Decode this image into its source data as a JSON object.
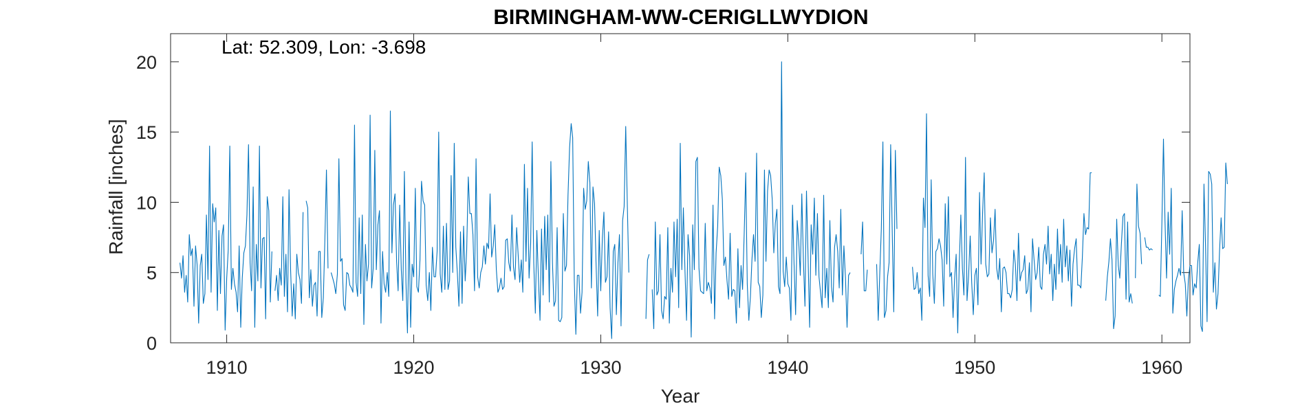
{
  "chart_data": {
    "type": "line",
    "title": "BIRMINGHAM-WW-CERIGLLWYDION",
    "annotation": "Lat: 52.309, Lon: -3.698",
    "xlabel": "Year",
    "ylabel": "Rainfall [inches]",
    "xlim": [
      1907,
      1961.5
    ],
    "ylim": [
      0,
      22
    ],
    "xticks": [
      1910,
      1920,
      1930,
      1940,
      1950,
      1960
    ],
    "yticks": [
      0,
      5,
      10,
      15,
      20
    ],
    "grid": false,
    "series": [
      {
        "color": "#0072BD",
        "x_start": 1907.5,
        "x_step": 0.083333,
        "values": [
          5.7,
          4.6,
          6.2,
          3.6,
          4.8,
          2.9,
          7.7,
          6.2,
          6.7,
          2.6,
          6.9,
          5.6,
          1.4,
          5.5,
          6.3,
          2.8,
          3.5,
          9.1,
          4.5,
          14.0,
          3.6,
          9.9,
          8.6,
          9.6,
          2.3,
          8.0,
          3.5,
          7.6,
          8.4,
          0.9,
          4.6,
          6.6,
          14.0,
          3.8,
          5.3,
          4.2,
          3.6,
          2.2,
          6.9,
          1.1,
          4.6,
          6.4,
          6.9,
          9.1,
          14.1,
          5.7,
          3.7,
          11.1,
          1.1,
          7.0,
          4.4,
          14.0,
          3.9,
          7.4,
          7.5,
          1.7,
          10.4,
          9.4,
          2.9,
          6.5,
          null,
          3.7,
          4.8,
          3.0,
          5.3,
          4.1,
          10.4,
          3.3,
          6.3,
          2.2,
          10.9,
          5.2,
          1.9,
          4.2,
          1.7,
          6.3,
          5.0,
          4.5,
          2.8,
          9.3,
          null,
          10.1,
          9.6,
          3.2,
          5.2,
          2.6,
          4.1,
          4.3,
          1.9,
          6.5,
          6.5,
          1.8,
          3.2,
          7.3,
          12.3,
          5.3,
          null,
          5.0,
          4.6,
          4.2,
          3.5,
          4.9,
          13.1,
          5.8,
          6.0,
          2.7,
          2.3,
          5.0,
          4.9,
          4.1,
          3.9,
          3.6,
          15.5,
          4.3,
          3.3,
          8.9,
          3.5,
          9.1,
          1.3,
          7.0,
          4.4,
          5.6,
          16.2,
          3.9,
          5.3,
          13.7,
          5.2,
          8.4,
          9.4,
          1.4,
          6.5,
          4.2,
          3.6,
          5.0,
          3.3,
          16.5,
          6.4,
          9.8,
          10.6,
          5.8,
          3.7,
          9.8,
          5.2,
          3.0,
          12.2,
          4.3,
          0.7,
          8.6,
          1.1,
          5.6,
          4.7,
          11.0,
          4.0,
          3.6,
          5.9,
          11.5,
          10.1,
          9.8,
          4.1,
          3.0,
          5.0,
          2.3,
          6.8,
          4.7,
          4.7,
          6.5,
          15.0,
          4.9,
          3.6,
          8.3,
          3.8,
          8.5,
          3.8,
          4.4,
          11.9,
          5.0,
          14.2,
          6.8,
          4.9,
          2.6,
          7.9,
          2.8,
          8.3,
          4.4,
          6.6,
          11.8,
          9.2,
          9.2,
          7.7,
          3.7,
          13.1,
          4.7,
          3.9,
          5.0,
          5.4,
          6.9,
          5.6,
          7.1,
          6.7,
          10.6,
          6.1,
          6.9,
          8.4,
          5.2,
          3.6,
          3.9,
          4.6,
          3.8,
          4.0,
          7.3,
          7.4,
          5.7,
          5.1,
          9.1,
          5.4,
          4.5,
          8.2,
          6.3,
          4.3,
          5.9,
          3.6,
          12.7,
          5.8,
          11.0,
          4.6,
          7.1,
          14.3,
          5.7,
          2.1,
          8.0,
          4.5,
          1.6,
          8.1,
          3.4,
          9.0,
          5.2,
          9.1,
          2.9,
          12.9,
          5.7,
          2.6,
          3.0,
          8.2,
          1.6,
          1.5,
          1.8,
          9.2,
          5.1,
          5.5,
          10.5,
          13.9,
          15.6,
          14.6,
          4.5,
          0.6,
          4.8,
          4.8,
          2.1,
          3.6,
          11.0,
          9.5,
          10.1,
          12.9,
          11.4,
          3.9,
          11.1,
          9.9,
          5.6,
          1.9,
          8.0,
          3.7,
          7.4,
          9.3,
          4.3,
          4.7,
          7.9,
          2.5,
          0.3,
          6.5,
          7.0,
          2.0,
          5.7,
          7.7,
          1.2,
          8.7,
          9.7,
          15.4,
          9.9,
          5.0,
          null,
          null,
          null,
          null,
          null,
          null,
          null,
          null,
          null,
          null,
          1.7,
          5.9,
          6.3,
          null,
          3.8,
          1.0,
          8.6,
          3.4,
          3.7,
          7.7,
          2.3,
          1.7,
          3.3,
          3.1,
          8.2,
          1.4,
          5.3,
          3.6,
          8.6,
          4.7,
          8.8,
          2.5,
          14.2,
          5.2,
          9.6,
          5.2,
          1.6,
          7.7,
          6.2,
          0.4,
          8.4,
          5.2,
          12.9,
          13.2,
          5.3,
          3.7,
          3.6,
          3.5,
          8.5,
          3.7,
          4.3,
          3.9,
          2.8,
          9.8,
          1.7,
          6.4,
          8.3,
          12.5,
          11.9,
          10.2,
          5.5,
          6.1,
          4.4,
          3.1,
          7.8,
          3.3,
          3.8,
          3.7,
          1.4,
          6.7,
          2.5,
          5.5,
          3.8,
          7.7,
          12.1,
          4.2,
          1.6,
          3.3,
          5.9,
          7.7,
          5.8,
          13.5,
          4.3,
          4.0,
          1.8,
          3.4,
          12.3,
          5.8,
          10.8,
          12.3,
          11.9,
          10.2,
          6.4,
          8.5,
          9.5,
          4.0,
          3.5,
          20.0,
          5.1,
          4.0,
          6.1,
          4.2,
          3.9,
          1.6,
          9.8,
          5.7,
          2.0,
          8.7,
          7.2,
          4.8,
          10.6,
          5.9,
          2.6,
          10.8,
          6.1,
          1.1,
          8.4,
          6.3,
          10.3,
          4.8,
          9.2,
          4.7,
          3.6,
          2.5,
          10.5,
          3.2,
          5.3,
          2.5,
          8.7,
          4.0,
          2.9,
          6.8,
          7.7,
          6.5,
          3.9,
          9.5,
          3.4,
          6.9,
          4.6,
          1.1,
          4.8,
          5.0,
          null,
          null,
          null,
          null,
          null,
          null,
          6.3,
          8.6,
          3.7,
          3.7,
          5.2,
          null,
          null,
          null,
          null,
          null,
          5.6,
          1.6,
          5.0,
          8.1,
          14.3,
          1.8,
          2.3,
          4.7,
          5.7,
          14.1,
          7.8,
          2.2,
          13.7,
          8.1,
          null,
          null,
          null,
          null,
          null,
          null,
          null,
          null,
          null,
          5.4,
          3.8,
          3.9,
          5.0,
          3.5,
          3.9,
          1.6,
          10.3,
          8.2,
          16.3,
          4.8,
          3.3,
          11.6,
          4.9,
          2.8,
          6.5,
          6.7,
          7.4,
          6.9,
          5.9,
          2.6,
          9.9,
          5.6,
          10.4,
          4.7,
          5.0,
          1.8,
          4.5,
          6.3,
          0.7,
          5.6,
          9.1,
          5.3,
          3.4,
          13.2,
          3.0,
          4.8,
          7.6,
          4.3,
          2.0,
          4.8,
          5.3,
          2.7,
          10.7,
          5.6,
          9.3,
          12.1,
          5.6,
          4.7,
          4.9,
          8.9,
          6.4,
          7.3,
          9.5,
          5.3,
          4.5,
          6.0,
          2.2,
          5.3,
          5.4,
          5.0,
          3.5,
          3.5,
          3.2,
          3.8,
          6.6,
          5.6,
          3.0,
          7.8,
          4.4,
          5.0,
          5.2,
          6.2,
          3.5,
          3.8,
          5.7,
          2.2,
          7.4,
          5.9,
          4.5,
          5.0,
          6.8,
          4.0,
          3.8,
          6.3,
          7.0,
          5.6,
          8.3,
          4.9,
          6.3,
          3.0,
          5.6,
          3.8,
          8.1,
          4.9,
          7.0,
          4.3,
          8.8,
          5.4,
          6.9,
          4.4,
          6.6,
          2.6,
          5.6,
          6.7,
          7.4,
          4.1,
          4.1,
          3.9,
          6.1,
          9.2,
          7.7,
          8.2,
          8.1,
          12.1,
          12.1,
          null,
          null,
          null,
          null,
          null,
          null,
          null,
          null,
          3.0,
          4.7,
          5.8,
          7.4,
          5.9,
          1.0,
          1.9,
          8.8,
          5.5,
          4.6,
          7.0,
          9.0,
          9.2,
          3.1,
          8.6,
          2.9,
          3.5,
          2.8,
          null,
          4.6,
          11.3,
          8.3,
          7.8,
          5.6,
          null,
          7.5,
          6.8,
          6.8,
          6.6,
          6.7,
          6.6,
          null,
          null,
          null,
          3.4,
          3.3,
          8.5,
          14.5,
          8.7,
          4.6,
          9.3,
          6.3,
          11.0,
          2.1,
          3.8,
          4.4,
          4.8,
          5.3,
          4.8,
          9.4,
          5.0,
          4.2,
          1.9,
          4.5,
          5.5,
          5.5,
          3.4,
          4.2,
          3.9,
          5.7,
          7.0,
          1.2,
          0.8,
          11.3,
          6.8,
          1.5,
          12.2,
          12.0,
          11.3,
          3.6,
          5.7,
          2.4,
          3.5,
          6.5,
          8.9,
          6.7,
          6.8,
          12.8,
          11.3
        ]
      }
    ]
  }
}
